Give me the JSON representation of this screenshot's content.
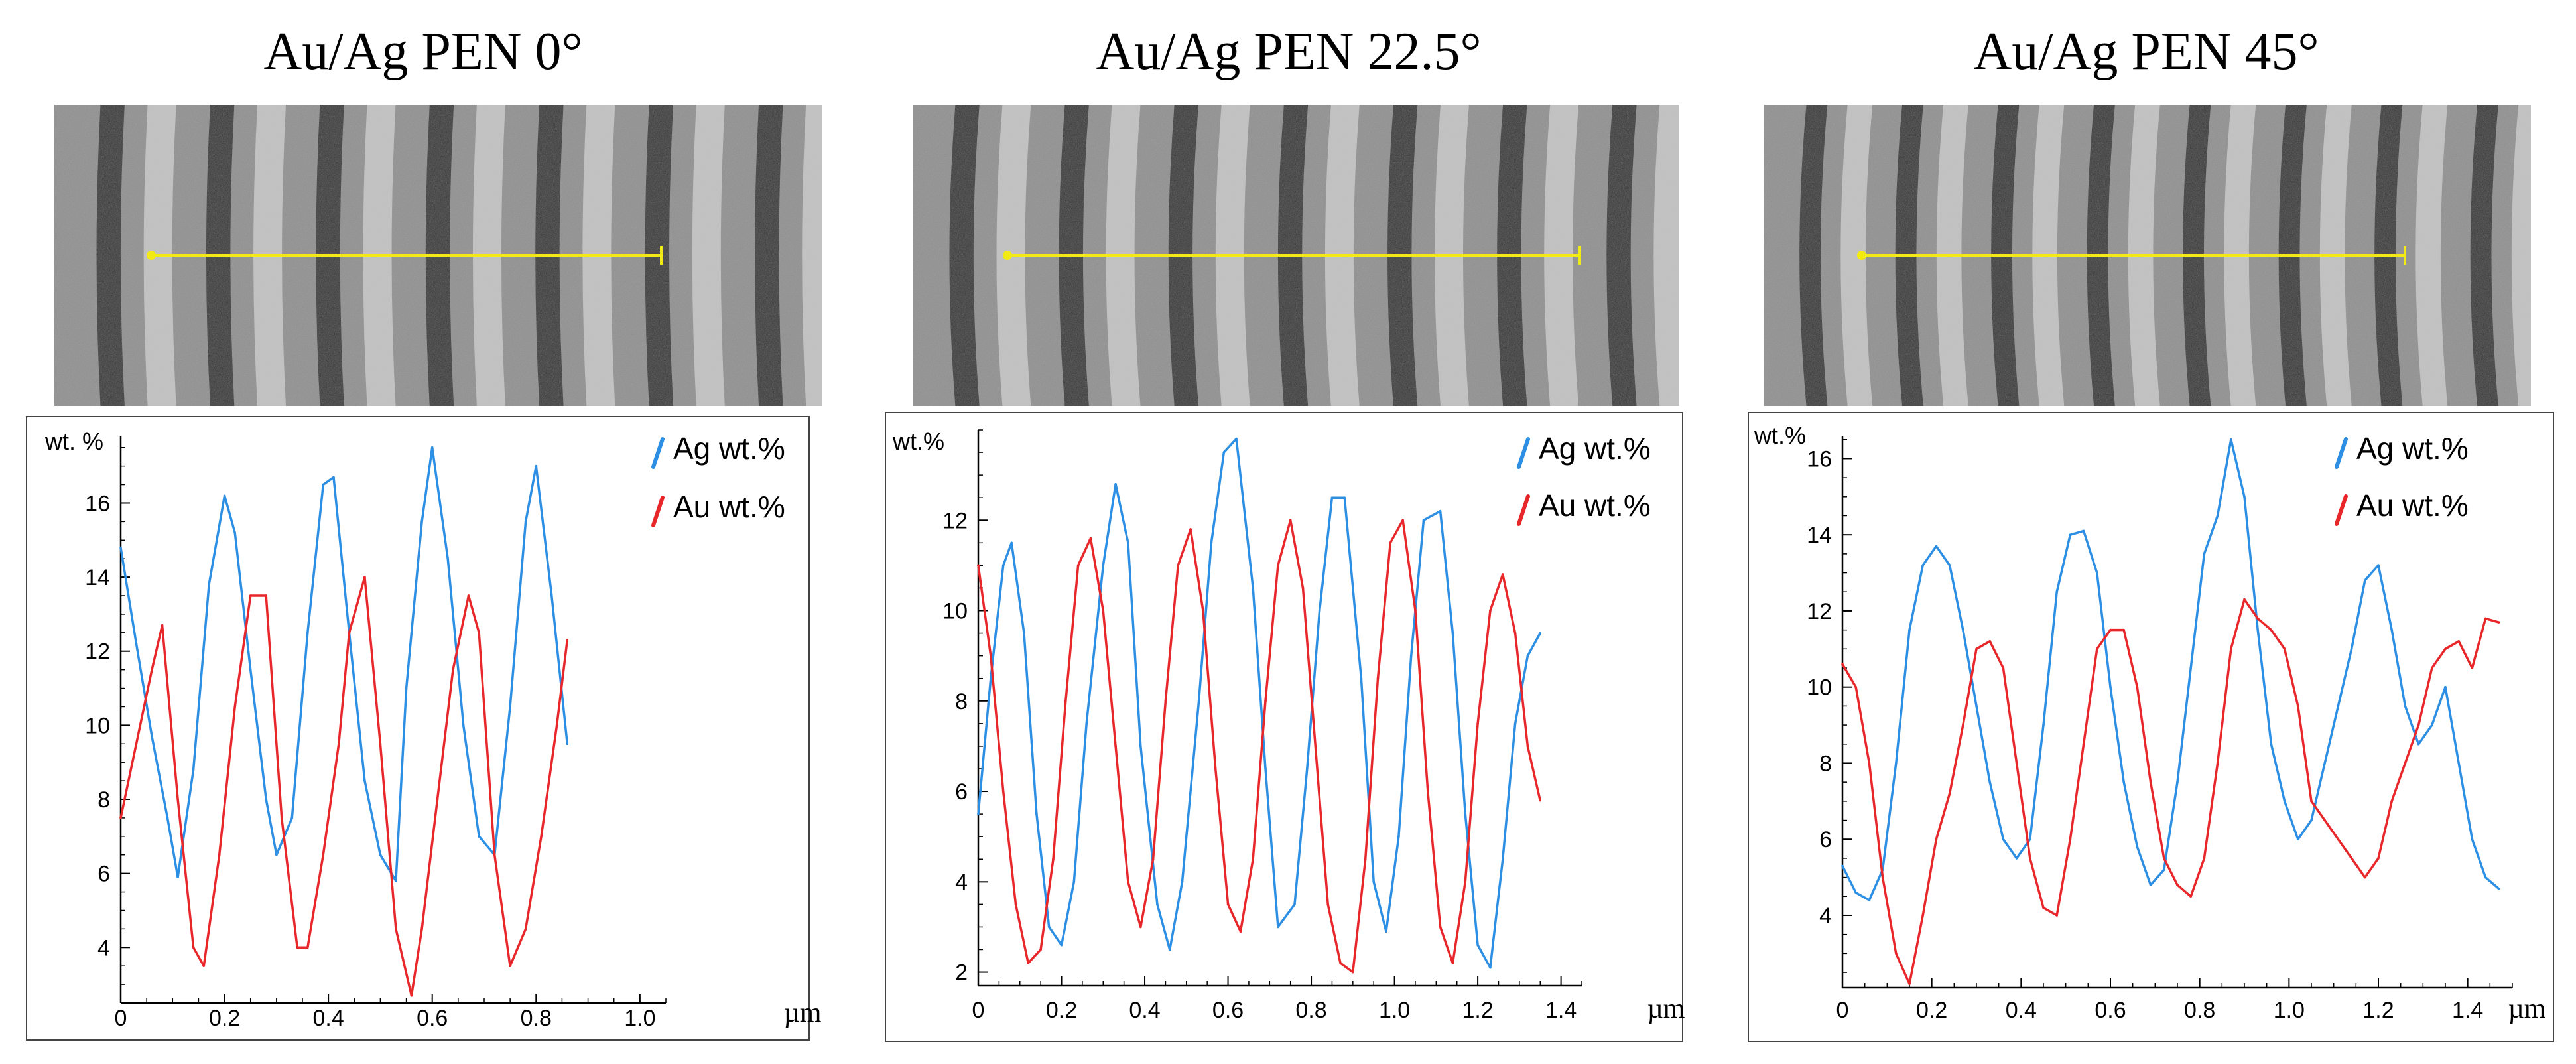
{
  "colors": {
    "ag": "#2d8fe3",
    "au": "#e8272b",
    "scan_line": "#f2ea14",
    "axis": "#000000",
    "frame": "#444444"
  },
  "chart_data": [
    {
      "type": "line",
      "title": "Au/Ag PEN 0°",
      "ylabel": "wt. %",
      "xlabel": "µm",
      "xlim": [
        0,
        1.05
      ],
      "ylim": [
        2.5,
        17.8
      ],
      "x_ticks": [
        0,
        0.2,
        0.4,
        0.6,
        0.8,
        1.0
      ],
      "x_tick_labels": [
        "0",
        "0.2",
        "0.4",
        "0.6",
        "0.8",
        "1.0"
      ],
      "y_ticks": [
        4,
        6,
        8,
        10,
        12,
        14,
        16
      ],
      "y_tick_labels": [
        "4",
        "6",
        "8",
        "10",
        "12",
        "14",
        "16"
      ],
      "micrograph": {
        "bands": 7,
        "offset": 0.03,
        "curvature": 0.6
      },
      "series": [
        {
          "name": "Ag wt.%",
          "x": [
            0,
            0.03,
            0.06,
            0.09,
            0.11,
            0.14,
            0.17,
            0.2,
            0.22,
            0.25,
            0.28,
            0.3,
            0.33,
            0.36,
            0.39,
            0.41,
            0.44,
            0.47,
            0.5,
            0.53,
            0.55,
            0.58,
            0.6,
            0.63,
            0.66,
            0.69,
            0.72,
            0.75,
            0.78,
            0.8,
            0.83,
            0.86
          ],
          "values": [
            14.8,
            12.2,
            9.7,
            7.5,
            5.9,
            8.8,
            13.8,
            16.2,
            15.2,
            11.5,
            8.0,
            6.5,
            7.5,
            12.5,
            16.5,
            16.7,
            12.5,
            8.5,
            6.5,
            5.8,
            11.0,
            15.5,
            17.5,
            14.5,
            10.0,
            7.0,
            6.5,
            10.5,
            15.5,
            17.0,
            13.5,
            9.5
          ]
        },
        {
          "name": "Au wt.%",
          "x": [
            0,
            0.03,
            0.06,
            0.08,
            0.11,
            0.14,
            0.16,
            0.19,
            0.22,
            0.25,
            0.28,
            0.31,
            0.34,
            0.36,
            0.39,
            0.42,
            0.44,
            0.47,
            0.5,
            0.53,
            0.56,
            0.58,
            0.61,
            0.64,
            0.67,
            0.69,
            0.72,
            0.75,
            0.78,
            0.81,
            0.84,
            0.86
          ],
          "values": [
            7.5,
            9.5,
            11.5,
            12.7,
            8.0,
            4.0,
            3.5,
            6.5,
            10.5,
            13.5,
            13.5,
            7.5,
            4.0,
            4.0,
            6.5,
            9.5,
            12.5,
            14.0,
            9.5,
            4.5,
            2.7,
            4.5,
            8.0,
            11.5,
            13.5,
            12.5,
            6.5,
            3.5,
            4.5,
            7.0,
            10.0,
            12.3
          ]
        }
      ],
      "legend": [
        "Ag wt.%",
        "Au wt.%"
      ]
    },
    {
      "type": "line",
      "title": "Au/Ag PEN 22.5°",
      "ylabel": "wt.%",
      "xlabel": "µm",
      "xlim": [
        0,
        1.45
      ],
      "ylim": [
        1.7,
        14.0
      ],
      "x_ticks": [
        0,
        0.2,
        0.4,
        0.6,
        0.8,
        1.0,
        1.2,
        1.4
      ],
      "x_tick_labels": [
        "0",
        "0.2",
        "0.4",
        "0.6",
        "0.8",
        "1.0",
        "1.2",
        "1.4"
      ],
      "y_ticks": [
        2,
        4,
        6,
        8,
        10,
        12
      ],
      "y_tick_labels": [
        "2",
        "4",
        "6",
        "8",
        "10",
        "12"
      ],
      "micrograph": {
        "bands": 7,
        "offset": 0.0,
        "curvature": 0.9
      },
      "series": [
        {
          "name": "Ag wt.%",
          "x": [
            0,
            0.03,
            0.06,
            0.08,
            0.11,
            0.14,
            0.17,
            0.2,
            0.23,
            0.26,
            0.3,
            0.33,
            0.36,
            0.39,
            0.43,
            0.46,
            0.49,
            0.53,
            0.56,
            0.59,
            0.62,
            0.66,
            0.69,
            0.72,
            0.76,
            0.79,
            0.82,
            0.85,
            0.88,
            0.92,
            0.95,
            0.98,
            1.01,
            1.04,
            1.07,
            1.11,
            1.14,
            1.17,
            1.2,
            1.23,
            1.26,
            1.29,
            1.32,
            1.35
          ],
          "values": [
            5.5,
            8.5,
            11.0,
            11.5,
            9.5,
            5.5,
            3.0,
            2.6,
            4.0,
            7.5,
            11.0,
            12.8,
            11.5,
            7.0,
            3.5,
            2.5,
            4.0,
            8.0,
            11.5,
            13.5,
            13.8,
            10.5,
            6.5,
            3.0,
            3.5,
            6.5,
            10.0,
            12.5,
            12.5,
            8.5,
            4.0,
            2.9,
            5.0,
            9.0,
            12.0,
            12.2,
            9.5,
            5.5,
            2.6,
            2.1,
            4.5,
            7.5,
            9.0,
            9.5
          ]
        },
        {
          "name": "Au wt.%",
          "x": [
            0,
            0.03,
            0.06,
            0.09,
            0.12,
            0.15,
            0.18,
            0.21,
            0.24,
            0.27,
            0.3,
            0.33,
            0.36,
            0.39,
            0.42,
            0.45,
            0.48,
            0.51,
            0.54,
            0.57,
            0.6,
            0.63,
            0.66,
            0.69,
            0.72,
            0.75,
            0.78,
            0.81,
            0.84,
            0.87,
            0.9,
            0.93,
            0.96,
            0.99,
            1.02,
            1.05,
            1.08,
            1.11,
            1.14,
            1.17,
            1.2,
            1.23,
            1.26,
            1.29,
            1.32,
            1.35
          ],
          "values": [
            11.0,
            9.0,
            6.0,
            3.5,
            2.2,
            2.5,
            4.5,
            8.0,
            11.0,
            11.6,
            10.0,
            7.0,
            4.0,
            3.0,
            4.5,
            8.0,
            11.0,
            11.8,
            10.0,
            6.5,
            3.5,
            2.9,
            4.5,
            8.0,
            11.0,
            12.0,
            10.5,
            7.0,
            3.5,
            2.2,
            2.0,
            4.5,
            8.5,
            11.5,
            12.0,
            10.0,
            6.0,
            3.0,
            2.2,
            4.0,
            7.5,
            10.0,
            10.8,
            9.5,
            7.0,
            5.8
          ]
        }
      ],
      "legend": [
        "Ag wt.%",
        "Au wt.%"
      ]
    },
    {
      "type": "line",
      "title": "Au/Ag PEN 45°",
      "ylabel": "wt.%",
      "xlabel": "µm",
      "xlim": [
        0,
        1.5
      ],
      "ylim": [
        2.1,
        16.6
      ],
      "x_ticks": [
        0,
        0.2,
        0.4,
        0.6,
        0.8,
        1.0,
        1.2,
        1.4
      ],
      "x_tick_labels": [
        "0",
        "0.2",
        "0.4",
        "0.6",
        "0.8",
        "1.0",
        "1.2",
        "1.4"
      ],
      "y_ticks": [
        4,
        6,
        8,
        10,
        12,
        14,
        16
      ],
      "y_tick_labels": [
        "4",
        "6",
        "8",
        "10",
        "12",
        "14",
        "16"
      ],
      "micrograph": {
        "bands": 8,
        "offset": 0.05,
        "curvature": 1.2
      },
      "series": [
        {
          "name": "Ag wt.%",
          "x": [
            0,
            0.03,
            0.06,
            0.09,
            0.12,
            0.15,
            0.18,
            0.21,
            0.24,
            0.27,
            0.3,
            0.33,
            0.36,
            0.39,
            0.42,
            0.45,
            0.48,
            0.51,
            0.54,
            0.57,
            0.6,
            0.63,
            0.66,
            0.69,
            0.72,
            0.75,
            0.78,
            0.81,
            0.84,
            0.87,
            0.9,
            0.93,
            0.96,
            0.99,
            1.02,
            1.05,
            1.08,
            1.11,
            1.14,
            1.17,
            1.2,
            1.23,
            1.26,
            1.29,
            1.32,
            1.35,
            1.38,
            1.41,
            1.44,
            1.47
          ],
          "values": [
            5.3,
            4.6,
            4.4,
            5.2,
            8.0,
            11.5,
            13.2,
            13.7,
            13.2,
            11.5,
            9.5,
            7.5,
            6.0,
            5.5,
            6.0,
            9.0,
            12.5,
            14.0,
            14.1,
            13.0,
            10.0,
            7.5,
            5.8,
            4.8,
            5.2,
            7.5,
            10.5,
            13.5,
            14.5,
            16.5,
            15.0,
            11.5,
            8.5,
            7.0,
            6.0,
            6.5,
            8.0,
            9.5,
            11.0,
            12.8,
            13.2,
            11.5,
            9.5,
            8.5,
            9.0,
            10.0,
            8.0,
            6.0,
            5.0,
            4.7
          ]
        },
        {
          "name": "Au wt.%",
          "x": [
            0,
            0.03,
            0.06,
            0.09,
            0.12,
            0.15,
            0.18,
            0.21,
            0.24,
            0.27,
            0.3,
            0.33,
            0.36,
            0.39,
            0.42,
            0.45,
            0.48,
            0.51,
            0.54,
            0.57,
            0.6,
            0.63,
            0.66,
            0.69,
            0.72,
            0.75,
            0.78,
            0.81,
            0.84,
            0.87,
            0.9,
            0.93,
            0.96,
            0.99,
            1.02,
            1.05,
            1.08,
            1.11,
            1.14,
            1.17,
            1.2,
            1.23,
            1.26,
            1.29,
            1.32,
            1.35,
            1.38,
            1.41,
            1.44,
            1.47
          ],
          "values": [
            10.6,
            10.0,
            8.0,
            5.0,
            3.0,
            2.2,
            4.0,
            6.0,
            7.2,
            9.0,
            11.0,
            11.2,
            10.5,
            8.0,
            5.5,
            4.2,
            4.0,
            6.0,
            8.5,
            11.0,
            11.5,
            11.5,
            10.0,
            7.5,
            5.5,
            4.8,
            4.5,
            5.5,
            8.0,
            11.0,
            12.3,
            11.8,
            11.5,
            11.0,
            9.5,
            7.0,
            6.5,
            6.0,
            5.5,
            5.0,
            5.5,
            7.0,
            8.0,
            9.0,
            10.5,
            11.0,
            11.2,
            10.5,
            11.8,
            11.7
          ]
        }
      ],
      "legend": [
        "Ag wt.%",
        "Au wt.%"
      ]
    }
  ]
}
